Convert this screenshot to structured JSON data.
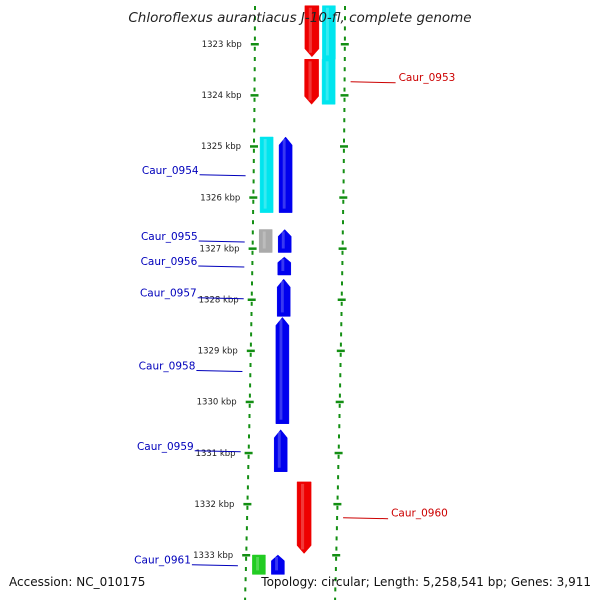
{
  "header": {
    "title": "Chloroflexus aurantiacus J-10-fl, complete genome"
  },
  "footer": {
    "accession_label": "Accession:",
    "accession": "NC_010175",
    "topology_label": "Topology:",
    "topology": "circular;",
    "length_label": "Length:",
    "length": "5,258,541 bp;",
    "genes_label": "Genes:",
    "genes": "3,911"
  },
  "axis": {
    "ticks": [
      {
        "label": "1323 kbp",
        "kbp": 1323
      },
      {
        "label": "1324 kbp",
        "kbp": 1324
      },
      {
        "label": "1325 kbp",
        "kbp": 1325
      },
      {
        "label": "1326 kbp",
        "kbp": 1326
      },
      {
        "label": "1327 kbp",
        "kbp": 1327
      },
      {
        "label": "1328 kbp",
        "kbp": 1328
      },
      {
        "label": "1329 kbp",
        "kbp": 1329
      },
      {
        "label": "1330 kbp",
        "kbp": 1330
      },
      {
        "label": "1331 kbp",
        "kbp": 1331
      },
      {
        "label": "1332 kbp",
        "kbp": 1332
      },
      {
        "label": "1333 kbp",
        "kbp": 1333
      }
    ]
  },
  "colors": {
    "forward_strand": "#ee0000",
    "forward_rna": "#00e5ee",
    "reverse_strand": "#0000ee",
    "reverse_rna": "#00e5ee",
    "gray_feature": "#aaaaaa",
    "green_feature": "#22cc22",
    "ruler": "#138f13",
    "backbone": "#888888",
    "forward_label": "#cc0000",
    "reverse_label": "#0000bb"
  },
  "genes": [
    {
      "label": "",
      "strand": "forward",
      "start_kbp": 1322.25,
      "end_kbp": 1323.25,
      "color": "#ee0000"
    },
    {
      "label": "",
      "strand": "forward_rna",
      "start_kbp": 1322.25,
      "end_kbp": 1323.3,
      "color": "#00e5ee"
    },
    {
      "label": "Caur_0953",
      "strand": "forward",
      "start_kbp": 1323.3,
      "end_kbp": 1324.18,
      "color": "#ee0000"
    },
    {
      "label": "",
      "strand": "forward_rna",
      "start_kbp": 1323.3,
      "end_kbp": 1324.18,
      "color": "#00e5ee"
    },
    {
      "label": "",
      "strand": "reverse_rna",
      "start_kbp": 1324.82,
      "end_kbp": 1326.3,
      "color": "#00e5ee"
    },
    {
      "label": "Caur_0954",
      "strand": "reverse",
      "start_kbp": 1324.82,
      "end_kbp": 1326.3,
      "color": "#0000ee"
    },
    {
      "label": "",
      "strand": "reverse_rna",
      "start_kbp": 1326.63,
      "end_kbp": 1327.08,
      "color": "#aaaaaa"
    },
    {
      "label": "Caur_0955",
      "strand": "reverse",
      "start_kbp": 1326.63,
      "end_kbp": 1327.08,
      "color": "#0000ee"
    },
    {
      "label": "Caur_0956",
      "strand": "reverse",
      "start_kbp": 1327.17,
      "end_kbp": 1327.52,
      "color": "#0000ee"
    },
    {
      "label": "Caur_0957",
      "strand": "reverse",
      "start_kbp": 1327.6,
      "end_kbp": 1328.33,
      "color": "#0000ee"
    },
    {
      "label": "Caur_0958",
      "strand": "reverse",
      "start_kbp": 1328.35,
      "end_kbp": 1330.43,
      "color": "#0000ee"
    },
    {
      "label": "Caur_0959",
      "strand": "reverse",
      "start_kbp": 1330.55,
      "end_kbp": 1331.37,
      "color": "#0000ee"
    },
    {
      "label": "Caur_0960",
      "strand": "forward",
      "start_kbp": 1331.57,
      "end_kbp": 1332.97,
      "color": "#ee0000"
    },
    {
      "label": "",
      "strand": "reverse_rna",
      "start_kbp": 1333.0,
      "end_kbp": 1333.38,
      "color": "#22cc22"
    },
    {
      "label": "Caur_0961",
      "strand": "reverse",
      "start_kbp": 1333.0,
      "end_kbp": 1333.38,
      "color": "#0000ee"
    }
  ]
}
